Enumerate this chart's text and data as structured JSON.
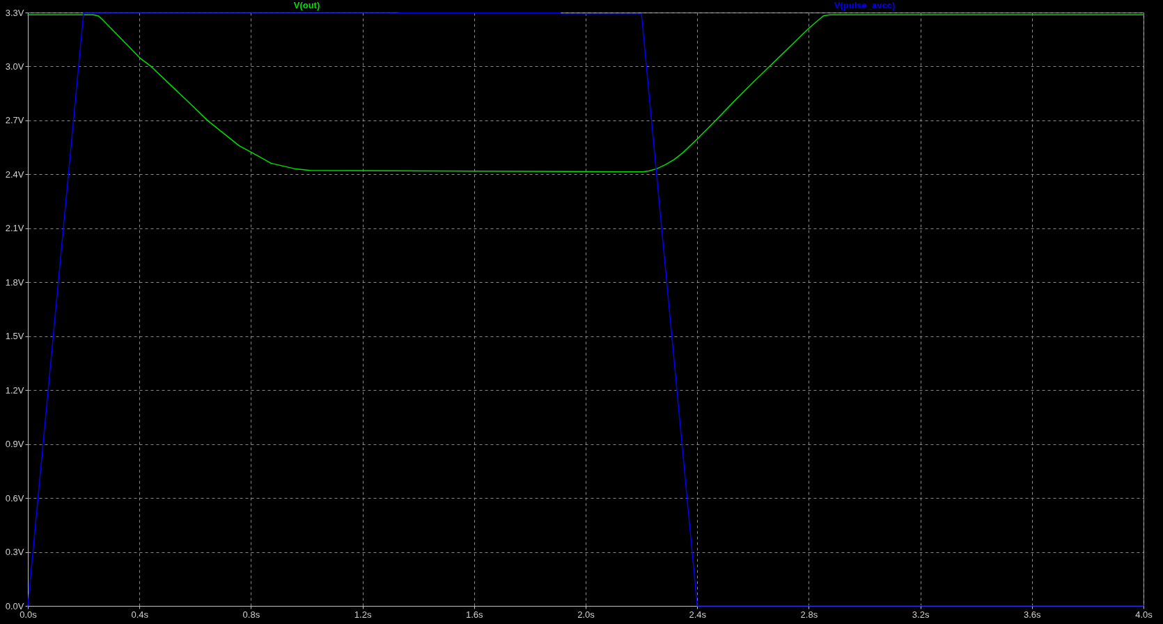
{
  "chart_data": {
    "type": "line",
    "series": [
      {
        "name": "V(out)",
        "color": "#00e000",
        "x": [
          0,
          0.235,
          0.253,
          0.266,
          0.336,
          0.402,
          0.442,
          0.521,
          0.591,
          0.644,
          0.696,
          0.758,
          0.8,
          0.872,
          0.96,
          1.013,
          1.6,
          2.204,
          2.226,
          2.256,
          2.287,
          2.318,
          2.349,
          2.402,
          2.458,
          2.527,
          2.599,
          2.661,
          2.707,
          2.772,
          2.801,
          2.841,
          2.854,
          2.876,
          4.0
        ],
        "values": [
          3.287,
          3.287,
          3.281,
          3.263,
          3.152,
          3.047,
          3.0,
          2.883,
          2.78,
          2.7,
          2.635,
          2.559,
          2.524,
          2.462,
          2.43,
          2.422,
          2.418,
          2.414,
          2.419,
          2.432,
          2.455,
          2.483,
          2.521,
          2.6,
          2.687,
          2.798,
          2.91,
          3.004,
          3.072,
          3.17,
          3.214,
          3.267,
          3.283,
          3.287,
          3.287
        ]
      },
      {
        "name": "V(pulse_avcc)",
        "color": "#0000ff",
        "x": [
          0,
          0.2,
          1.33,
          1.33,
          1.91,
          1.91,
          2.2,
          2.4,
          4.0
        ],
        "values": [
          0,
          3.3,
          3.3,
          3.297,
          3.297,
          3.293,
          3.293,
          0,
          0
        ]
      }
    ],
    "xlim": [
      0,
      4.0
    ],
    "ylim": [
      0,
      3.3
    ],
    "xticks": [
      {
        "value": 0,
        "label": "0.0s"
      },
      {
        "value": 0.4,
        "label": "0.4s"
      },
      {
        "value": 0.8,
        "label": "0.8s"
      },
      {
        "value": 1.2,
        "label": "1.2s"
      },
      {
        "value": 1.6,
        "label": "1.6s"
      },
      {
        "value": 2.0,
        "label": "2.0s"
      },
      {
        "value": 2.4,
        "label": "2.4s"
      },
      {
        "value": 2.8,
        "label": "2.8s"
      },
      {
        "value": 3.2,
        "label": "3.2s"
      },
      {
        "value": 3.6,
        "label": "3.6s"
      },
      {
        "value": 4.0,
        "label": "4.0s"
      }
    ],
    "yticks": [
      {
        "value": 0,
        "label": "0.0V"
      },
      {
        "value": 0.3,
        "label": "0.3V"
      },
      {
        "value": 0.6,
        "label": "0.6V"
      },
      {
        "value": 0.9,
        "label": "0.9V"
      },
      {
        "value": 1.2,
        "label": "1.2V"
      },
      {
        "value": 1.5,
        "label": "1.5V"
      },
      {
        "value": 1.8,
        "label": "1.8V"
      },
      {
        "value": 2.1,
        "label": "2.1V"
      },
      {
        "value": 2.4,
        "label": "2.4V"
      },
      {
        "value": 2.7,
        "label": "2.7V"
      },
      {
        "value": 3.0,
        "label": "3.0V"
      },
      {
        "value": 3.3,
        "label": "3.3V"
      }
    ],
    "grid": true,
    "legend": "top"
  }
}
